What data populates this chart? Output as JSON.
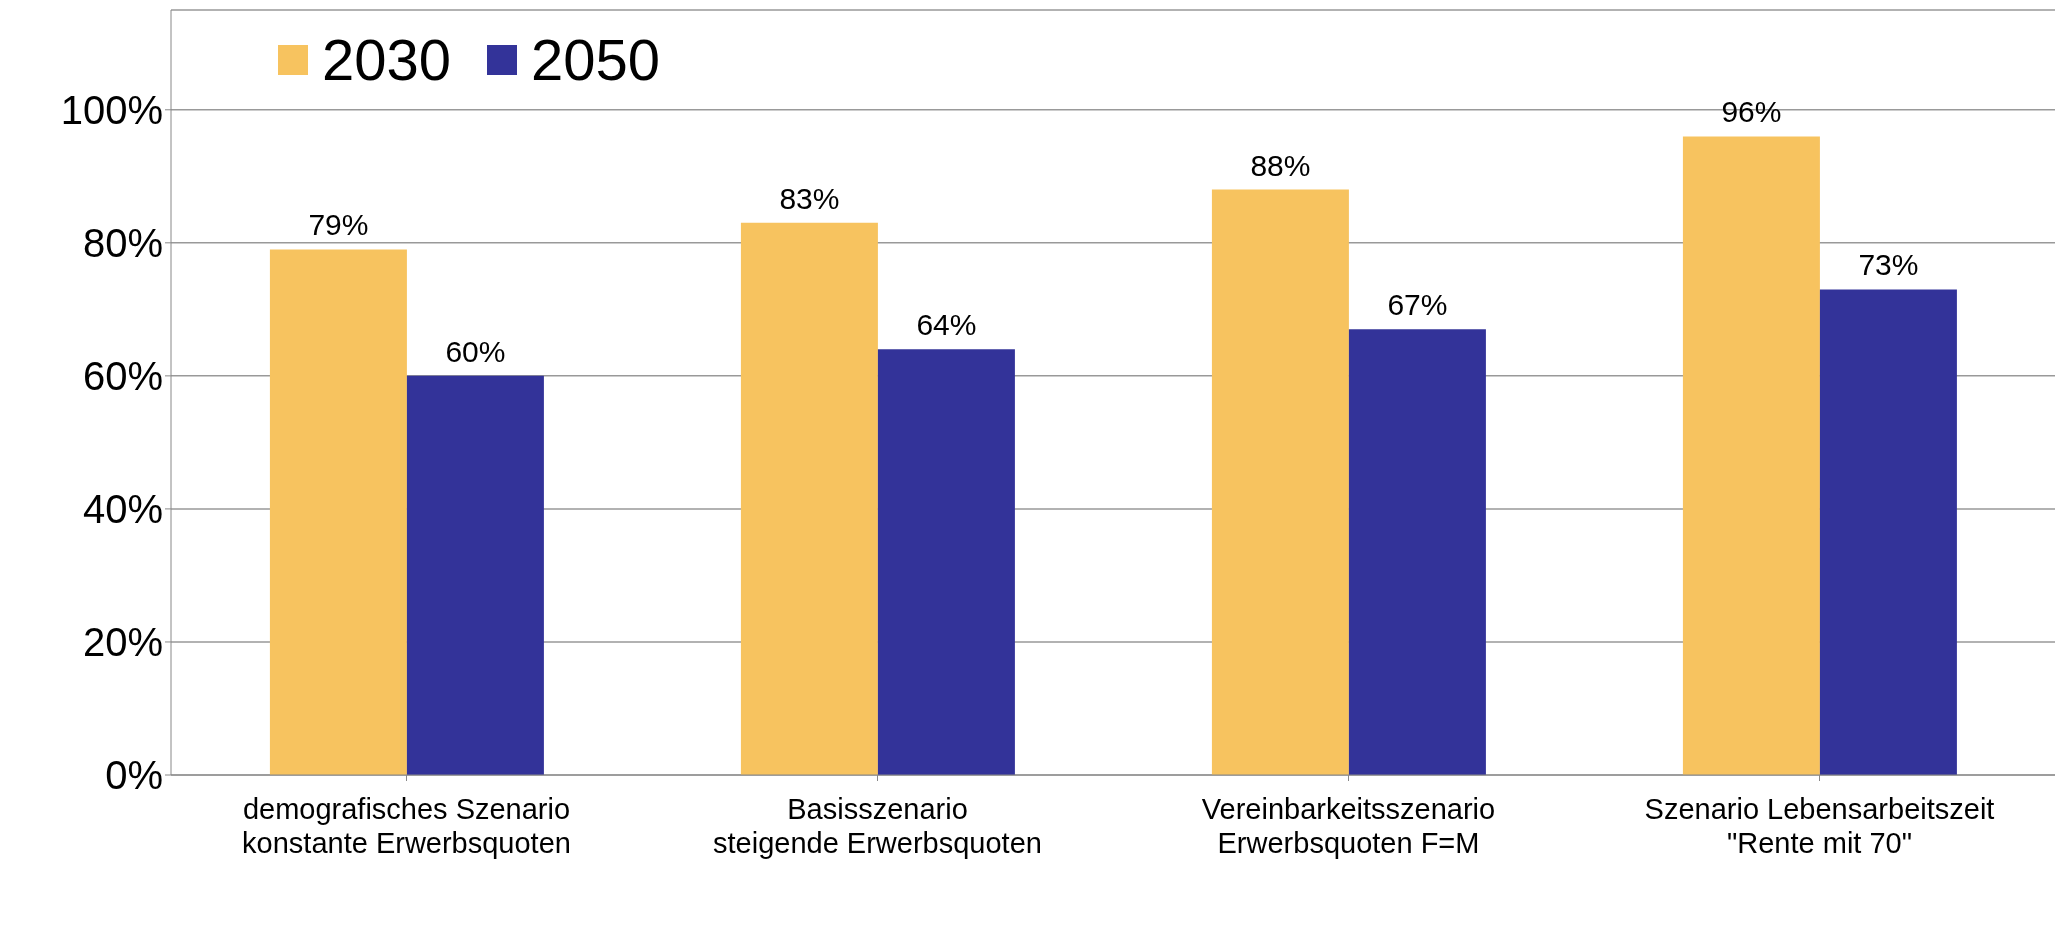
{
  "chart_data": {
    "type": "bar",
    "categories": [
      "demografisches Szenario\nkonstante Erwerbsquoten",
      "Basisszenario\nsteigende Erwerbsquoten",
      "Vereinbarkeitsszenario\nErwerbsquoten F=M",
      "Szenario Lebensarbeitszeit\n\"Rente mit 70\""
    ],
    "series": [
      {
        "name": "2030",
        "color": "#f7c35f",
        "values": [
          79,
          83,
          88,
          96
        ],
        "value_labels": [
          "79%",
          "83%",
          "88%",
          "96%"
        ]
      },
      {
        "name": "2050",
        "color": "#333399",
        "values": [
          60,
          64,
          67,
          73
        ],
        "value_labels": [
          "60%",
          "64%",
          "67%",
          "73%"
        ]
      }
    ],
    "ylim": [
      0,
      115
    ],
    "yticks": [
      {
        "value": 0,
        "label": "0%"
      },
      {
        "value": 20,
        "label": "20%"
      },
      {
        "value": 40,
        "label": "40%"
      },
      {
        "value": 60,
        "label": "60%"
      },
      {
        "value": 80,
        "label": "80%"
      },
      {
        "value": 100,
        "label": "100%"
      }
    ],
    "grid": "y",
    "legend": "top left"
  }
}
